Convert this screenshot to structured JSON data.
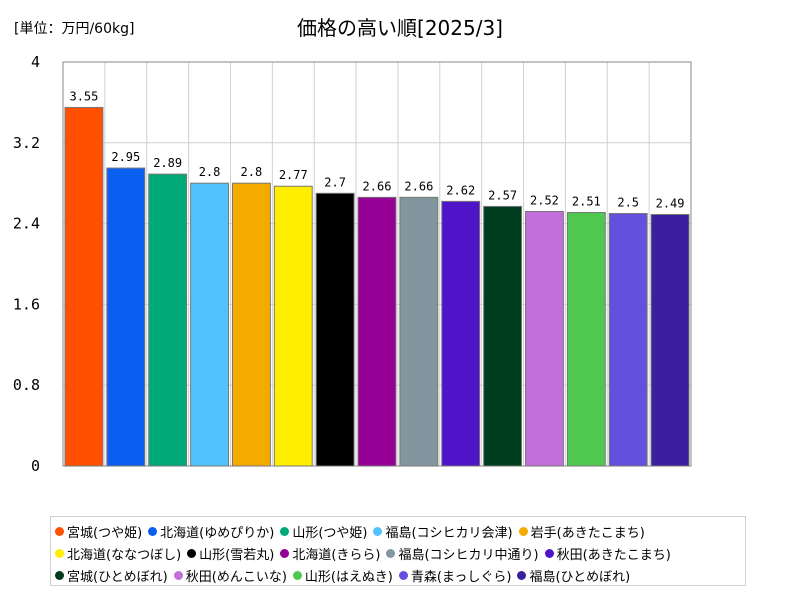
{
  "unit_label": "[単位：万円/60kg]",
  "chart_data": {
    "type": "bar",
    "title": "価格の高い順[2025/3]",
    "ylim": [
      0,
      4
    ],
    "yticks": [
      "0",
      "0.8",
      "1.6",
      "2.4",
      "3.2",
      "4"
    ],
    "ytick_values": [
      0,
      0.8,
      1.6,
      2.4,
      3.2,
      4
    ],
    "grid": true,
    "legend_position": "bottom",
    "categories": [
      "宮城(つや姫)",
      "北海道(ゆめぴりか)",
      "山形(つや姫)",
      "福島(コシヒカリ会津)",
      "岩手(あきたこまち)",
      "北海道(ななつぼし)",
      "山形(雪若丸)",
      "北海道(きらら)",
      "福島(コシヒカリ中通り)",
      "秋田(あきたこまち)",
      "宮城(ひとめぼれ)",
      "秋田(めんこいな)",
      "山形(はえぬき)",
      "青森(まっしぐら)",
      "福島(ひとめぼれ)"
    ],
    "values": [
      3.55,
      2.95,
      2.89,
      2.8,
      2.8,
      2.77,
      2.7,
      2.66,
      2.66,
      2.62,
      2.57,
      2.52,
      2.51,
      2.5,
      2.49
    ],
    "value_labels": [
      "3.55",
      "2.95",
      "2.89",
      "2.8",
      "2.8",
      "2.77",
      "2.7",
      "2.66",
      "2.66",
      "2.62",
      "2.57",
      "2.52",
      "2.51",
      "2.5",
      "2.49"
    ],
    "colors": [
      "#ff5000",
      "#0a5ff0",
      "#00aa78",
      "#50c3ff",
      "#f5aa00",
      "#ffee00",
      "#000000",
      "#960096",
      "#8296a0",
      "#5014c8",
      "#003c1e",
      "#c36edc",
      "#50c850",
      "#6450dc",
      "#3c1ea0"
    ]
  }
}
